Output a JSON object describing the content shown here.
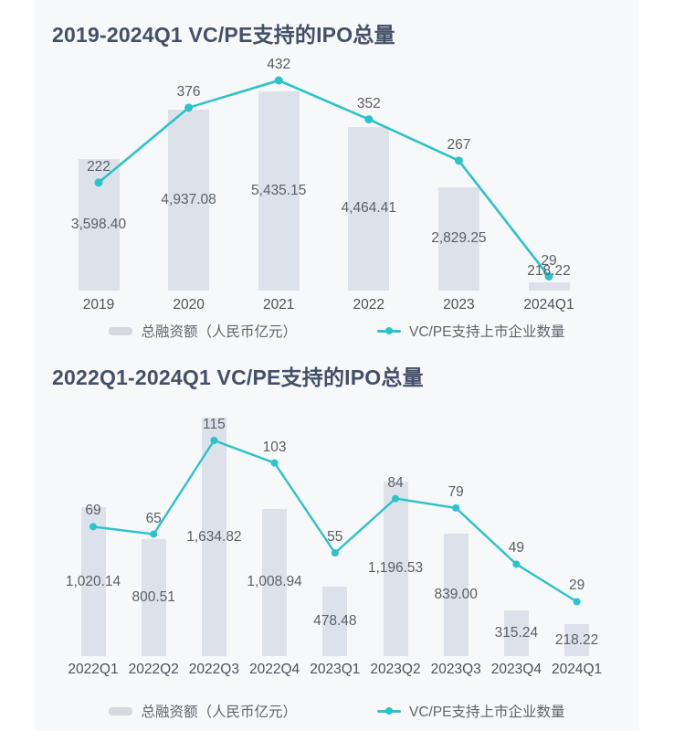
{
  "page": {
    "background": "#ffffff",
    "panel_background": "#f7f8fa"
  },
  "colors": {
    "bar": "#dde2ea",
    "line": "#2bc3cc",
    "title": "#435068",
    "value_label": "#5a6066",
    "axis_label": "#4c525a",
    "legend_text": "#5f656c",
    "legend_swatch": "#d5d9de"
  },
  "legend": {
    "bar_label": "总融资额（人民币亿元）",
    "line_label": "VC/PE支持上市企业数量"
  },
  "chart_data": [
    {
      "type": "bar",
      "subtype": "bar+line combo",
      "title": "2019-2024Q1 VC/PE支持的IPO总量",
      "categories": [
        "2019",
        "2020",
        "2021",
        "2022",
        "2023",
        "2024Q1"
      ],
      "series": [
        {
          "name": "总融资额（人民币亿元）",
          "type": "bar",
          "values": [
            3598.4,
            4937.08,
            5435.15,
            4464.41,
            2829.25,
            218.22
          ],
          "value_labels": [
            "3,598.40",
            "4,937.08",
            "5,435.15",
            "4,464.41",
            "2,829.25",
            "218.22"
          ]
        },
        {
          "name": "VC/PE支持上市企业数量",
          "type": "line",
          "values": [
            222,
            376,
            432,
            352,
            267,
            29
          ],
          "value_labels": [
            "222",
            "376",
            "432",
            "352",
            "267",
            "29"
          ]
        }
      ],
      "legend_position": "bottom",
      "grid": false,
      "axes_hidden": true
    },
    {
      "type": "bar",
      "subtype": "bar+line combo",
      "title": "2022Q1-2024Q1 VC/PE支持的IPO总量",
      "categories": [
        "2022Q1",
        "2022Q2",
        "2022Q3",
        "2022Q4",
        "2023Q1",
        "2023Q2",
        "2023Q3",
        "2023Q4",
        "2024Q1"
      ],
      "series": [
        {
          "name": "总融资额（人民币亿元）",
          "type": "bar",
          "values": [
            1020.14,
            800.51,
            1634.82,
            1008.94,
            478.48,
            1196.53,
            839.0,
            315.24,
            218.22
          ],
          "value_labels": [
            "1,020.14",
            "800.51",
            "1,634.82",
            "1,008.94",
            "478.48",
            "1,196.53",
            "839.00",
            "315.24",
            "218.22"
          ]
        },
        {
          "name": "VC/PE支持上市企业数量",
          "type": "line",
          "values": [
            69,
            65,
            115,
            103,
            55,
            84,
            79,
            49,
            29
          ],
          "value_labels": [
            "69",
            "65",
            "115",
            "103",
            "55",
            "84",
            "79",
            "49",
            "29"
          ]
        }
      ],
      "legend_position": "bottom",
      "grid": false,
      "axes_hidden": true
    }
  ]
}
